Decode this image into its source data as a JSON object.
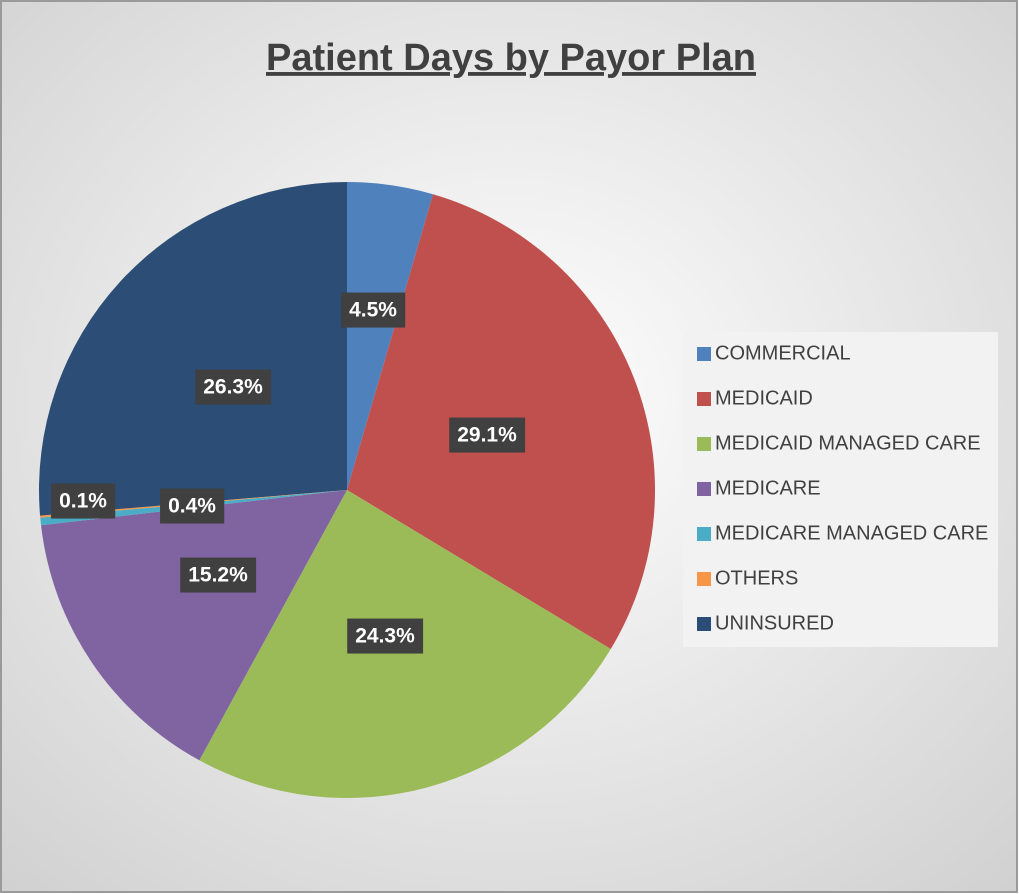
{
  "chart_data": {
    "type": "pie",
    "title": "Patient Days by Payor Plan",
    "categories": [
      "COMMERCIAL",
      "MEDICAID",
      "MEDICAID MANAGED CARE",
      "MEDICARE",
      "MEDICARE MANAGED CARE",
      "OTHERS",
      "UNINSURED"
    ],
    "values": [
      4.5,
      29.1,
      24.3,
      15.2,
      0.4,
      0.1,
      26.3
    ],
    "value_labels": [
      "4.5%",
      "29.1%",
      "24.3%",
      "15.2%",
      "0.4%",
      "0.1%",
      "26.3%"
    ],
    "colors": [
      "#4f81bd",
      "#c0504d",
      "#9bbb59",
      "#8064a2",
      "#4bacc6",
      "#f79646",
      "#2c4d75"
    ],
    "legend": "right"
  }
}
